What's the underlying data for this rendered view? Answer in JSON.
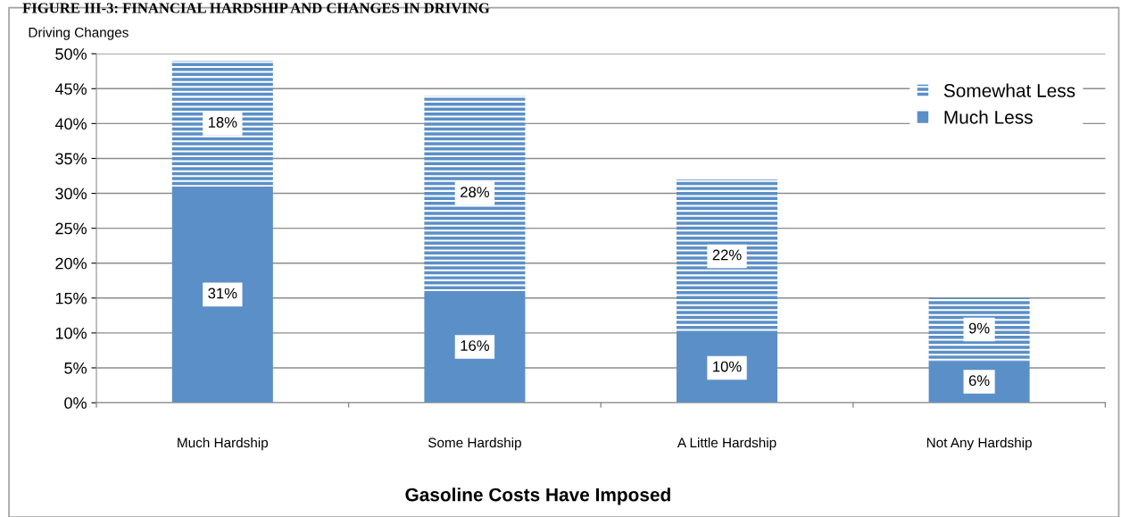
{
  "chart_data": {
    "type": "bar",
    "title": "FIGURE III-3: FINANCIAL HARDSHIP AND CHANGES IN DRIVING",
    "ylabel": "Driving Changes",
    "xlabel": "Gasoline Costs Have Imposed",
    "categories": [
      "Much Hardship",
      "Some Hardship",
      "A Little Hardship",
      "Not Any Hardship"
    ],
    "series": [
      {
        "name": "Much Less",
        "color": "#5b8fc7",
        "values": [
          31,
          16,
          10,
          6
        ],
        "value_labels": [
          "31%",
          "16%",
          "10%",
          "6%"
        ]
      },
      {
        "name": "Somewhat Less",
        "color": "#5b8fc7",
        "values": [
          18,
          28,
          22,
          9
        ],
        "value_labels": [
          "18%",
          "28%",
          "22%",
          "9%"
        ]
      }
    ],
    "stacked": true,
    "grid": "y",
    "legend": "top right",
    "ylim": [
      0,
      50
    ],
    "yticks": [
      {
        "value": 0,
        "label": "0%"
      },
      {
        "value": 5,
        "label": "5%"
      },
      {
        "value": 10,
        "label": "10%"
      },
      {
        "value": 15,
        "label": "15%"
      },
      {
        "value": 20,
        "label": "20%"
      },
      {
        "value": 25,
        "label": "25%"
      },
      {
        "value": 30,
        "label": "30%"
      },
      {
        "value": 35,
        "label": "35%"
      },
      {
        "value": 40,
        "label": "40%"
      },
      {
        "value": 45,
        "label": "45%"
      },
      {
        "value": 50,
        "label": "50%"
      }
    ]
  }
}
